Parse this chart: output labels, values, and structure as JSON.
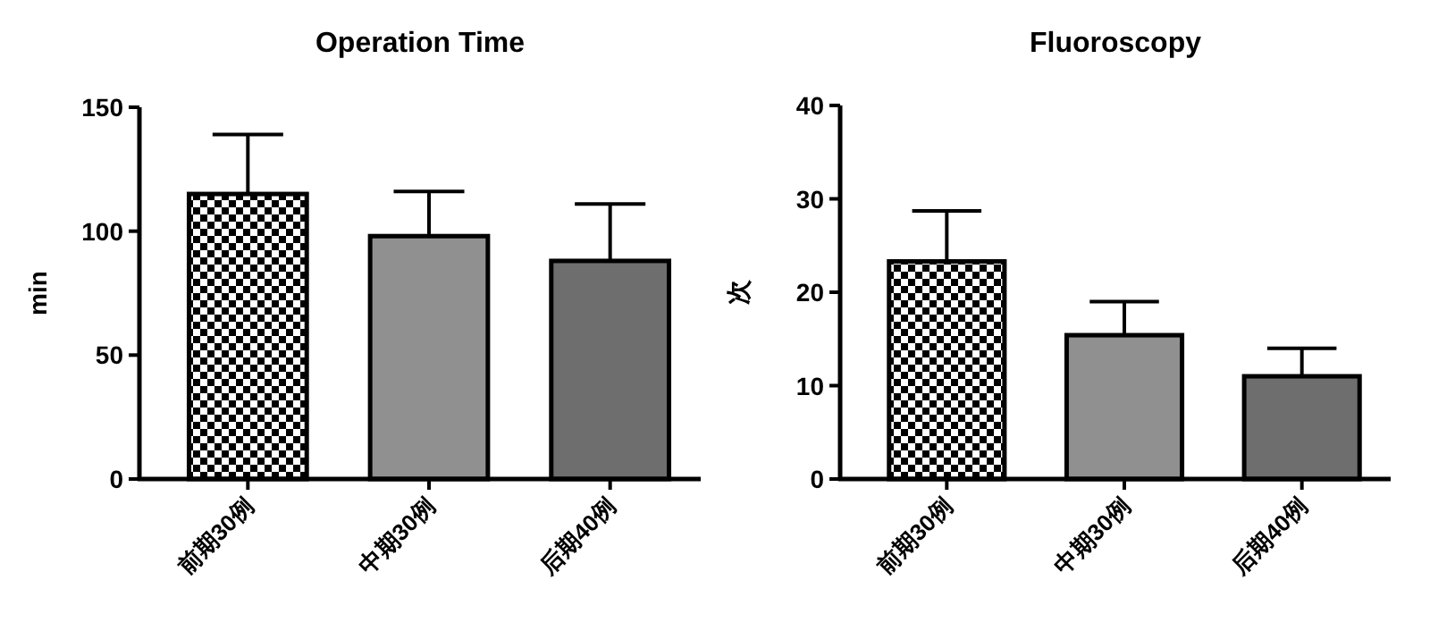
{
  "chart_data": [
    {
      "type": "bar",
      "title": "Operation Time",
      "ylabel": "min",
      "categories": [
        "前期30例",
        "中期30例",
        "后期40例"
      ],
      "values": [
        115,
        98,
        88
      ],
      "colors": [
        "#000000",
        "#909090",
        "#6e6e6e"
      ],
      "errors": [
        [
          115,
          139
        ],
        [
          98,
          116
        ],
        [
          88,
          111
        ]
      ],
      "ylim": [
        0,
        150
      ],
      "yticks": [
        0,
        50,
        100,
        150
      ],
      "grid": false
    },
    {
      "type": "bar",
      "title": "Fluoroscopy",
      "ylabel": "次",
      "categories": [
        "前期30例",
        "中期30例",
        "后期40例"
      ],
      "values": [
        23.3,
        15.4,
        11
      ],
      "colors": [
        "#000000",
        "#909090",
        "#6e6e6e"
      ],
      "errors": [
        [
          23.3,
          28.7
        ],
        [
          15.4,
          19
        ],
        [
          11,
          14
        ]
      ],
      "ylim": [
        0,
        40
      ],
      "yticks": [
        0,
        10,
        20,
        30,
        40
      ],
      "grid": false
    }
  ]
}
